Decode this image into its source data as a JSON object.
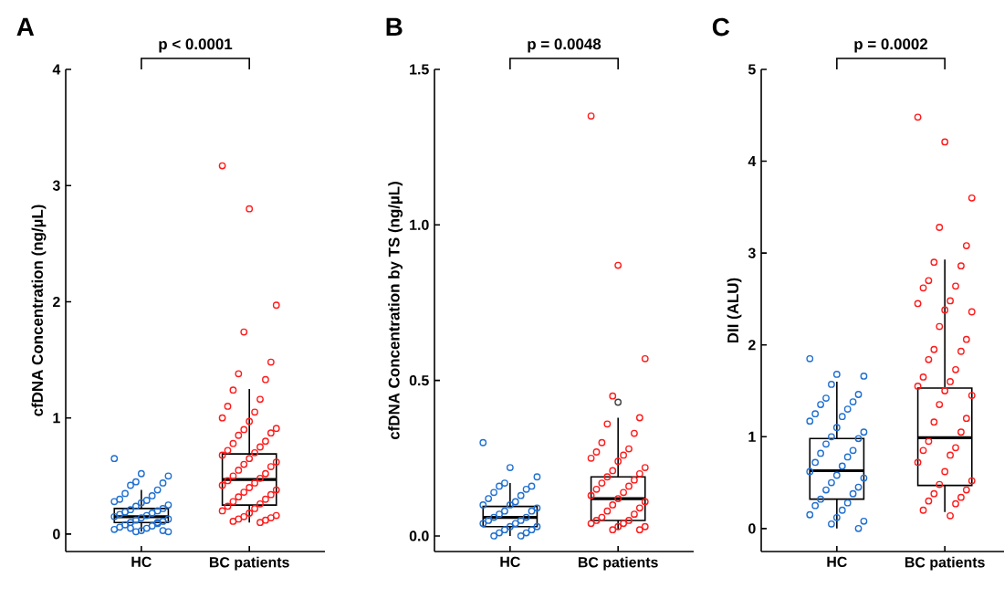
{
  "chart_data": [
    {
      "type": "box",
      "title": "A",
      "ylabel": "cfDNA Concentration (ng/µL)",
      "annotations": [
        "p < 0.0001"
      ],
      "categories": [
        "HC",
        "BC patients"
      ],
      "ylim": [
        -0.15,
        4
      ],
      "yticks": [
        0,
        1,
        2,
        3,
        4
      ],
      "boxes": [
        {
          "low": 0.02,
          "q1": 0.1,
          "median": 0.15,
          "q3": 0.22,
          "high": 0.38
        },
        {
          "low": 0.1,
          "q1": 0.25,
          "median": 0.47,
          "q3": 0.69,
          "high": 1.25
        }
      ],
      "series": [
        {
          "type": "scatter",
          "color": "#1f6fd1",
          "marker": "circle",
          "x": [
            "HC",
            "HC",
            "HC",
            "HC",
            "HC",
            "HC",
            "HC",
            "HC",
            "HC",
            "HC",
            "HC",
            "HC",
            "HC",
            "HC",
            "HC",
            "HC",
            "HC",
            "HC",
            "HC",
            "HC",
            "HC",
            "HC",
            "HC",
            "HC",
            "HC",
            "HC",
            "HC",
            "HC",
            "HC",
            "HC",
            "HC",
            "HC",
            "HC",
            "HC",
            "HC",
            "HC",
            "HC",
            "HC",
            "HC",
            "HC"
          ],
          "values": [
            0.65,
            0.52,
            0.5,
            0.45,
            0.44,
            0.42,
            0.38,
            0.35,
            0.33,
            0.3,
            0.29,
            0.28,
            0.27,
            0.25,
            0.24,
            0.22,
            0.21,
            0.2,
            0.19,
            0.18,
            0.17,
            0.16,
            0.15,
            0.14,
            0.13,
            0.12,
            0.11,
            0.1,
            0.09,
            0.08,
            0.07,
            0.06,
            0.05,
            0.04,
            0.03,
            0.02,
            0.02,
            0.03,
            0.05,
            0.1
          ]
        },
        {
          "type": "scatter",
          "color": "#ff1a1a",
          "marker": "circle",
          "x": [
            "BC patients",
            "BC patients",
            "BC patients",
            "BC patients",
            "BC patients",
            "BC patients",
            "BC patients",
            "BC patients",
            "BC patients",
            "BC patients",
            "BC patients",
            "BC patients",
            "BC patients",
            "BC patients",
            "BC patients",
            "BC patients",
            "BC patients",
            "BC patients",
            "BC patients",
            "BC patients",
            "BC patients",
            "BC patients",
            "BC patients",
            "BC patients",
            "BC patients",
            "BC patients",
            "BC patients",
            "BC patients",
            "BC patients",
            "BC patients",
            "BC patients",
            "BC patients",
            "BC patients",
            "BC patients",
            "BC patients",
            "BC patients",
            "BC patients",
            "BC patients",
            "BC patients",
            "BC patients",
            "BC patients",
            "BC patients",
            "BC patients",
            "BC patients",
            "BC patients",
            "BC patients",
            "BC patients",
            "BC patients",
            "BC patients",
            "BC patients",
            "BC patients",
            "BC patients",
            "BC patients"
          ],
          "values": [
            3.17,
            2.8,
            1.97,
            1.74,
            1.48,
            1.38,
            1.33,
            1.24,
            1.16,
            1.1,
            1.05,
            1.0,
            0.97,
            0.91,
            0.9,
            0.87,
            0.85,
            0.8,
            0.78,
            0.75,
            0.72,
            0.7,
            0.68,
            0.65,
            0.62,
            0.6,
            0.58,
            0.55,
            0.52,
            0.5,
            0.48,
            0.46,
            0.44,
            0.42,
            0.4,
            0.38,
            0.36,
            0.34,
            0.32,
            0.3,
            0.28,
            0.26,
            0.24,
            0.22,
            0.2,
            0.18,
            0.16,
            0.15,
            0.14,
            0.13,
            0.12,
            0.11,
            0.1
          ]
        }
      ]
    },
    {
      "type": "box",
      "title": "B",
      "ylabel": "cfDNA Concentration by TS (ng/µL)",
      "annotations": [
        "p = 0.0048"
      ],
      "categories": [
        "HC",
        "BC patients"
      ],
      "ylim": [
        -0.05,
        1.5
      ],
      "yticks": [
        {
          "value": 0,
          "label": "0.0"
        },
        {
          "value": 0.5,
          "label": "0.5"
        },
        {
          "value": 1,
          "label": "1.0"
        },
        {
          "value": 1.5,
          "label": "1.5"
        }
      ],
      "boxes": [
        {
          "low": 0.0,
          "q1": 0.03,
          "median": 0.06,
          "q3": 0.095,
          "high": 0.17
        },
        {
          "low": 0.02,
          "q1": 0.05,
          "median": 0.12,
          "q3": 0.19,
          "high": 0.38,
          "outliers": [
            0.43
          ]
        }
      ],
      "series": [
        {
          "type": "scatter",
          "color": "#1f6fd1",
          "marker": "circle",
          "x": [
            "HC",
            "HC",
            "HC",
            "HC",
            "HC",
            "HC",
            "HC",
            "HC",
            "HC",
            "HC",
            "HC",
            "HC",
            "HC",
            "HC",
            "HC",
            "HC",
            "HC",
            "HC",
            "HC",
            "HC",
            "HC",
            "HC",
            "HC",
            "HC",
            "HC",
            "HC",
            "HC",
            "HC",
            "HC",
            "HC",
            "HC"
          ],
          "values": [
            0.3,
            0.22,
            0.19,
            0.17,
            0.16,
            0.16,
            0.15,
            0.14,
            0.13,
            0.12,
            0.11,
            0.1,
            0.1,
            0.09,
            0.08,
            0.08,
            0.07,
            0.06,
            0.06,
            0.05,
            0.05,
            0.04,
            0.04,
            0.03,
            0.03,
            0.02,
            0.02,
            0.01,
            0.01,
            0.0,
            0.0
          ]
        },
        {
          "type": "scatter",
          "color": "#ff1a1a",
          "marker": "circle",
          "x": [
            "BC patients",
            "BC patients",
            "BC patients",
            "BC patients",
            "BC patients",
            "BC patients",
            "BC patients",
            "BC patients",
            "BC patients",
            "BC patients",
            "BC patients",
            "BC patients",
            "BC patients",
            "BC patients",
            "BC patients",
            "BC patients",
            "BC patients",
            "BC patients",
            "BC patients",
            "BC patients",
            "BC patients",
            "BC patients",
            "BC patients",
            "BC patients",
            "BC patients",
            "BC patients",
            "BC patients",
            "BC patients",
            "BC patients",
            "BC patients",
            "BC patients",
            "BC patients",
            "BC patients",
            "BC patients",
            "BC patients",
            "BC patients",
            "BC patients",
            "BC patients"
          ],
          "values": [
            1.35,
            0.87,
            0.57,
            0.45,
            0.38,
            0.36,
            0.33,
            0.3,
            0.28,
            0.27,
            0.26,
            0.25,
            0.24,
            0.22,
            0.21,
            0.2,
            0.19,
            0.18,
            0.17,
            0.16,
            0.15,
            0.14,
            0.13,
            0.12,
            0.11,
            0.1,
            0.09,
            0.08,
            0.07,
            0.06,
            0.05,
            0.05,
            0.04,
            0.04,
            0.03,
            0.03,
            0.02,
            0.02
          ]
        }
      ]
    },
    {
      "type": "box",
      "title": "C",
      "ylabel": "DII (ALU)",
      "annotations": [
        "p = 0.0002"
      ],
      "categories": [
        "HC",
        "BC patients"
      ],
      "ylim": [
        -0.25,
        5
      ],
      "yticks": [
        0,
        1,
        2,
        3,
        4,
        5
      ],
      "boxes": [
        {
          "low": 0.0,
          "q1": 0.32,
          "median": 0.63,
          "q3": 0.98,
          "high": 1.6
        },
        {
          "low": 0.18,
          "q1": 0.47,
          "median": 0.99,
          "q3": 1.53,
          "high": 2.93
        }
      ],
      "series": [
        {
          "type": "scatter",
          "color": "#1f6fd1",
          "marker": "circle",
          "x": [
            "HC",
            "HC",
            "HC",
            "HC",
            "HC",
            "HC",
            "HC",
            "HC",
            "HC",
            "HC",
            "HC",
            "HC",
            "HC",
            "HC",
            "HC",
            "HC",
            "HC",
            "HC",
            "HC",
            "HC",
            "HC",
            "HC",
            "HC",
            "HC",
            "HC",
            "HC",
            "HC",
            "HC",
            "HC",
            "HC",
            "HC",
            "HC",
            "HC",
            "HC",
            "HC",
            "HC",
            "HC",
            "HC"
          ],
          "values": [
            1.85,
            1.68,
            1.66,
            1.57,
            1.46,
            1.42,
            1.38,
            1.35,
            1.3,
            1.25,
            1.22,
            1.17,
            1.1,
            1.05,
            1.0,
            0.98,
            0.92,
            0.85,
            0.82,
            0.78,
            0.72,
            0.68,
            0.62,
            0.58,
            0.55,
            0.5,
            0.45,
            0.42,
            0.38,
            0.32,
            0.28,
            0.25,
            0.2,
            0.15,
            0.12,
            0.08,
            0.05,
            0.0
          ]
        },
        {
          "type": "scatter",
          "color": "#ff1a1a",
          "marker": "circle",
          "x": [
            "BC patients",
            "BC patients",
            "BC patients",
            "BC patients",
            "BC patients",
            "BC patients",
            "BC patients",
            "BC patients",
            "BC patients",
            "BC patients",
            "BC patients",
            "BC patients",
            "BC patients",
            "BC patients",
            "BC patients",
            "BC patients",
            "BC patients",
            "BC patients",
            "BC patients",
            "BC patients",
            "BC patients",
            "BC patients",
            "BC patients",
            "BC patients",
            "BC patients",
            "BC patients",
            "BC patients",
            "BC patients",
            "BC patients",
            "BC patients",
            "BC patients",
            "BC patients",
            "BC patients",
            "BC patients",
            "BC patients",
            "BC patients",
            "BC patients",
            "BC patients",
            "BC patients",
            "BC patients",
            "BC patients",
            "BC patients",
            "BC patients",
            "BC patients"
          ],
          "values": [
            4.48,
            4.21,
            3.6,
            3.28,
            3.08,
            2.9,
            2.86,
            2.7,
            2.64,
            2.62,
            2.48,
            2.45,
            2.38,
            2.36,
            2.2,
            2.06,
            1.95,
            1.93,
            1.84,
            1.73,
            1.65,
            1.6,
            1.55,
            1.5,
            1.45,
            1.35,
            1.2,
            1.16,
            1.05,
            0.95,
            0.88,
            0.85,
            0.8,
            0.72,
            0.62,
            0.52,
            0.48,
            0.42,
            0.38,
            0.34,
            0.3,
            0.27,
            0.2,
            0.14
          ]
        }
      ]
    }
  ]
}
